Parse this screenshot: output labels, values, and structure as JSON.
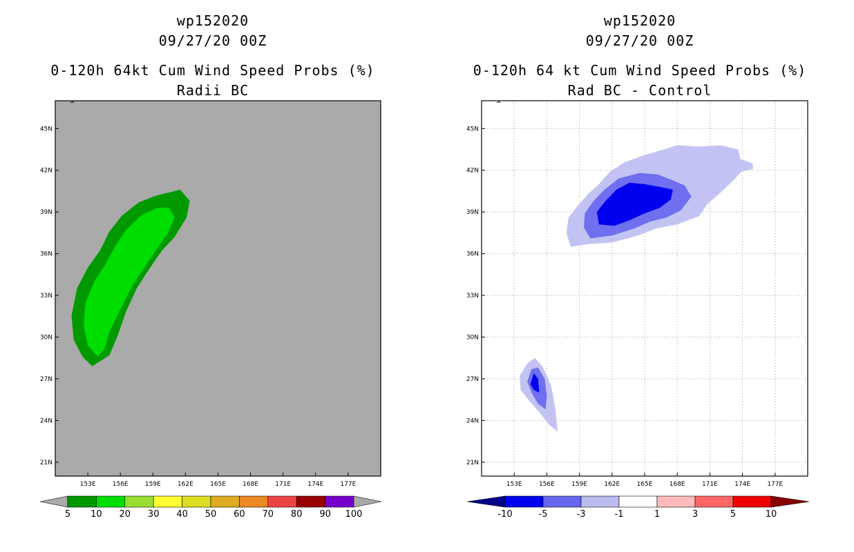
{
  "left": {
    "title_lines": [
      "wp152020",
      "09/27/20 00Z",
      "0-120h 64kt Cum Wind Speed Probs (%)",
      "Radii BC"
    ]
  },
  "right": {
    "title_lines": [
      "wp152020",
      "09/27/20 00Z",
      "0-120h 64 kt Cum Wind Speed Probs (%)",
      "Rad BC - Control"
    ]
  },
  "chart_data": [
    {
      "type": "heatmap",
      "name": "radii-bc",
      "title": "0-120h 64kt Cum Wind Speed Probs (%)",
      "subtitle": "Radii BC",
      "storm": "wp152020",
      "datetime": "09/27/20 00Z",
      "units": "%",
      "xlim": [
        150,
        180
      ],
      "ylim": [
        20,
        47
      ],
      "x_ticks": [
        153,
        156,
        159,
        162,
        165,
        168,
        171,
        174,
        177
      ],
      "x_tick_labels": [
        "153E",
        "156E",
        "159E",
        "162E",
        "165E",
        "168E",
        "171E",
        "174E",
        "177E"
      ],
      "y_ticks": [
        21,
        24,
        27,
        30,
        33,
        36,
        39,
        42,
        45
      ],
      "y_tick_labels": [
        "21N",
        "24N",
        "27N",
        "30N",
        "33N",
        "36N",
        "39N",
        "42N",
        "45N"
      ],
      "grid": false,
      "background": "#aaaaaa",
      "colorbar": {
        "levels": [
          "5",
          "10",
          "20",
          "30",
          "40",
          "50",
          "60",
          "70",
          "80",
          "90",
          "100"
        ],
        "colors": [
          "#009900",
          "#00dd00",
          "#99dd33",
          "#ffff33",
          "#dddd22",
          "#ddaa22",
          "#ee8822",
          "#ee4444",
          "#990000",
          "#7700cc"
        ],
        "under_color": "#aaaaaa",
        "over_color": "#aaaaaa"
      },
      "contours": [
        {
          "level": "5-10",
          "color": "#009900",
          "points": [
            [
              153.4,
              27.9
            ],
            [
              152.5,
              28.6
            ],
            [
              151.7,
              29.8
            ],
            [
              151.5,
              31.5
            ],
            [
              152.0,
              33.5
            ],
            [
              153.0,
              35.0
            ],
            [
              154.1,
              36.2
            ],
            [
              155.0,
              37.6
            ],
            [
              156.1,
              38.7
            ],
            [
              157.7,
              39.7
            ],
            [
              159.4,
              40.2
            ],
            [
              160.5,
              40.4
            ],
            [
              161.5,
              40.6
            ],
            [
              162.4,
              39.8
            ],
            [
              162.1,
              38.6
            ],
            [
              161.0,
              37.2
            ],
            [
              159.8,
              36.2
            ],
            [
              158.5,
              34.7
            ],
            [
              157.5,
              33.5
            ],
            [
              156.5,
              31.8
            ],
            [
              155.8,
              30.2
            ],
            [
              155.0,
              28.7
            ]
          ]
        },
        {
          "level": "10-20",
          "color": "#00dd00",
          "points": [
            [
              153.9,
              28.6
            ],
            [
              153.0,
              29.4
            ],
            [
              152.6,
              30.8
            ],
            [
              152.8,
              32.5
            ],
            [
              153.6,
              34.0
            ],
            [
              154.6,
              35.2
            ],
            [
              155.5,
              36.5
            ],
            [
              156.5,
              37.7
            ],
            [
              158.0,
              38.8
            ],
            [
              159.4,
              39.3
            ],
            [
              160.5,
              39.3
            ],
            [
              161.0,
              38.6
            ],
            [
              160.4,
              37.5
            ],
            [
              159.4,
              36.4
            ],
            [
              158.2,
              35.0
            ],
            [
              157.1,
              33.7
            ],
            [
              156.0,
              32.0
            ],
            [
              155.0,
              30.4
            ],
            [
              154.5,
              29.1
            ]
          ]
        }
      ]
    },
    {
      "type": "heatmap",
      "name": "rad-bc-minus-control",
      "title": "0-120h 64 kt Cum Wind Speed Probs (%)",
      "subtitle": "Rad BC - Control",
      "storm": "wp152020",
      "datetime": "09/27/20 00Z",
      "units": "%",
      "xlim": [
        150,
        180
      ],
      "ylim": [
        20,
        47
      ],
      "x_ticks": [
        153,
        156,
        159,
        162,
        165,
        168,
        171,
        174,
        177
      ],
      "x_tick_labels": [
        "153E",
        "156E",
        "159E",
        "162E",
        "165E",
        "168E",
        "171E",
        "174E",
        "177E"
      ],
      "y_ticks": [
        21,
        24,
        27,
        30,
        33,
        36,
        39,
        42,
        45
      ],
      "y_tick_labels": [
        "21N",
        "24N",
        "27N",
        "30N",
        "33N",
        "36N",
        "39N",
        "42N",
        "45N"
      ],
      "grid": true,
      "background": "#ffffff",
      "colorbar": {
        "levels": [
          "-10",
          "-5",
          "-3",
          "-1",
          "1",
          "3",
          "5",
          "10"
        ],
        "colors": [
          "#0000ee",
          "#6666ee",
          "#bbbbee",
          "#ffffff",
          "#ffbbbb",
          "#ff6666",
          "#ee0000"
        ],
        "under_color": "#000088",
        "over_color": "#880000"
      },
      "contours": [
        {
          "level": "-3 to -1",
          "color": "#c3c3f3",
          "points": [
            [
              158.2,
              36.5
            ],
            [
              157.8,
              37.5
            ],
            [
              158.0,
              38.6
            ],
            [
              158.9,
              39.5
            ],
            [
              159.8,
              40.3
            ],
            [
              160.8,
              41.0
            ],
            [
              161.8,
              41.9
            ],
            [
              163.2,
              42.6
            ],
            [
              165.0,
              43.1
            ],
            [
              166.8,
              43.5
            ],
            [
              168.0,
              43.8
            ],
            [
              170.0,
              43.7
            ],
            [
              172.0,
              43.8
            ],
            [
              173.6,
              43.5
            ],
            [
              173.8,
              42.8
            ],
            [
              174.9,
              42.5
            ],
            [
              175.0,
              42.1
            ],
            [
              173.9,
              41.9
            ],
            [
              173.2,
              41.3
            ],
            [
              172.0,
              40.4
            ],
            [
              170.8,
              39.6
            ],
            [
              170.0,
              38.7
            ],
            [
              168.0,
              38.1
            ],
            [
              166.0,
              37.8
            ],
            [
              164.4,
              37.3
            ],
            [
              162.0,
              36.8
            ],
            [
              160.0,
              36.7
            ]
          ]
        },
        {
          "level": "-3 to -1",
          "color": "#c3c3f3",
          "points": [
            [
              154.2,
              28.1
            ],
            [
              153.5,
              27.2
            ],
            [
              153.6,
              26.2
            ],
            [
              154.4,
              25.4
            ],
            [
              155.3,
              24.6
            ],
            [
              156.2,
              23.7
            ],
            [
              157.0,
              23.2
            ],
            [
              156.8,
              24.8
            ],
            [
              156.4,
              26.5
            ],
            [
              155.6,
              27.9
            ],
            [
              154.9,
              28.5
            ]
          ]
        },
        {
          "level": "-5 to -3",
          "color": "#6f6ff0",
          "points": [
            [
              160.0,
              37.1
            ],
            [
              159.4,
              37.9
            ],
            [
              159.5,
              38.9
            ],
            [
              160.3,
              39.8
            ],
            [
              161.3,
              40.6
            ],
            [
              162.6,
              41.4
            ],
            [
              164.5,
              41.8
            ],
            [
              166.2,
              41.7
            ],
            [
              167.5,
              41.3
            ],
            [
              168.7,
              40.9
            ],
            [
              169.3,
              40.1
            ],
            [
              168.3,
              39.1
            ],
            [
              167.0,
              38.6
            ],
            [
              165.5,
              38.3
            ],
            [
              164.0,
              37.8
            ],
            [
              162.0,
              37.3
            ]
          ]
        },
        {
          "level": "-5 to -3",
          "color": "#6f6ff0",
          "points": [
            [
              154.6,
              27.7
            ],
            [
              154.2,
              26.8
            ],
            [
              154.6,
              26.0
            ],
            [
              155.2,
              25.2
            ],
            [
              155.9,
              24.8
            ],
            [
              156.0,
              25.8
            ],
            [
              155.8,
              27.0
            ],
            [
              155.2,
              27.8
            ]
          ]
        },
        {
          "level": "-10 to -5",
          "color": "#0000ee",
          "points": [
            [
              160.8,
              38.1
            ],
            [
              160.6,
              39.0
            ],
            [
              161.4,
              39.8
            ],
            [
              162.4,
              40.6
            ],
            [
              163.6,
              41.1
            ],
            [
              165.0,
              41.0
            ],
            [
              166.4,
              40.8
            ],
            [
              167.6,
              40.6
            ],
            [
              167.4,
              39.9
            ],
            [
              166.4,
              39.3
            ],
            [
              165.0,
              38.9
            ],
            [
              163.6,
              38.4
            ],
            [
              162.2,
              38.0
            ]
          ]
        },
        {
          "level": "-10 to -5",
          "color": "#0000ee",
          "points": [
            [
              154.8,
              26.2
            ],
            [
              154.5,
              26.6
            ],
            [
              154.8,
              27.4
            ],
            [
              155.2,
              27.0
            ],
            [
              155.3,
              26.0
            ]
          ]
        }
      ]
    }
  ]
}
